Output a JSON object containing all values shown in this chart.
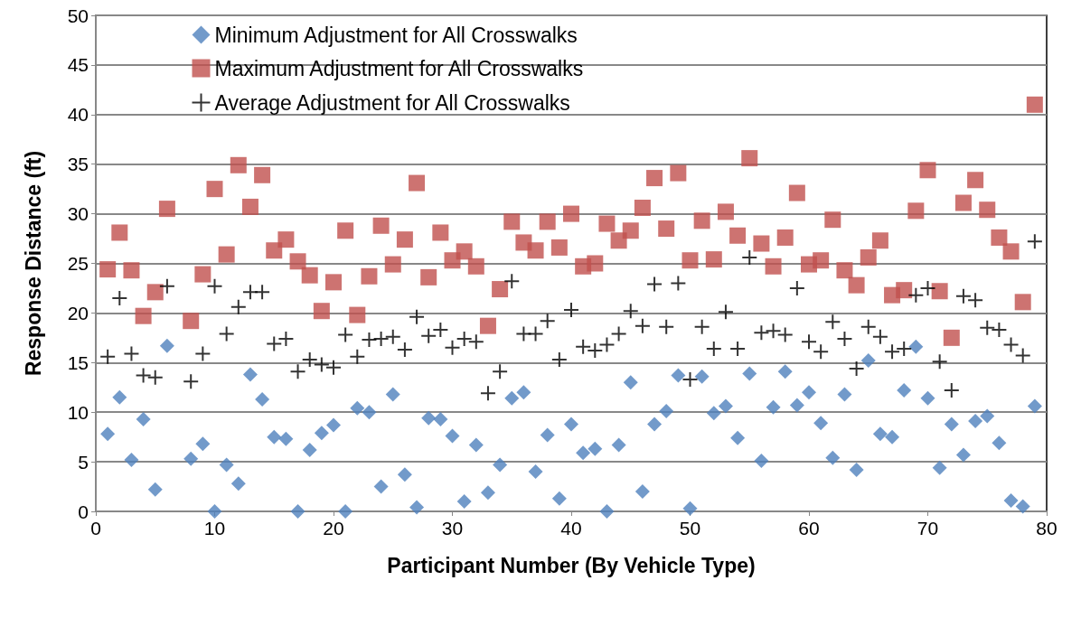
{
  "chart_data": {
    "type": "scatter",
    "xlabel": "Participant Number (By Vehicle Type)",
    "ylabel": "Response Distance (ft)",
    "x": [
      1,
      2,
      3,
      4,
      5,
      6,
      7,
      8,
      9,
      10,
      11,
      12,
      13,
      14,
      15,
      16,
      17,
      18,
      19,
      20,
      21,
      22,
      23,
      24,
      25,
      26,
      27,
      28,
      29,
      30,
      31,
      32,
      33,
      34,
      35,
      36,
      37,
      38,
      39,
      40,
      41,
      42,
      43,
      44,
      45,
      46,
      47,
      48,
      49,
      50,
      51,
      52,
      53,
      54,
      55,
      56,
      57,
      58,
      59,
      60,
      61,
      62,
      63,
      64,
      65,
      66,
      67,
      68,
      69,
      70,
      71,
      72,
      73,
      74,
      75,
      76,
      77,
      78,
      79
    ],
    "series": [
      {
        "name": "Minimum Adjustment for All Crosswalks",
        "color": "#4f81bd",
        "marker": "diamond",
        "values": [
          7.8,
          11.5,
          5.2,
          9.3,
          2.2,
          16.7,
          null,
          5.3,
          6.8,
          0,
          4.7,
          2.8,
          13.8,
          11.3,
          7.5,
          7.3,
          0,
          6.2,
          7.9,
          8.7,
          0,
          10.4,
          10.0,
          2.5,
          11.8,
          3.7,
          0.4,
          9.4,
          9.3,
          7.6,
          1.0,
          6.7,
          1.9,
          4.7,
          11.4,
          12.0,
          4.0,
          7.7,
          1.3,
          8.8,
          5.9,
          6.3,
          0,
          6.7,
          13.0,
          2.0,
          8.8,
          10.1,
          13.7,
          0.3,
          13.6,
          9.9,
          10.6,
          7.4,
          13.9,
          5.1,
          10.5,
          14.1,
          10.7,
          12.0,
          8.9,
          5.4,
          11.8,
          4.2,
          15.2,
          7.8,
          7.5,
          12.2,
          16.6,
          11.4,
          4.4,
          8.8,
          5.7,
          9.1,
          9.6,
          6.9,
          1.1,
          0.5,
          10.6
        ]
      },
      {
        "name": "Maximum Adjustment for All Crosswalks",
        "color": "#c0504d",
        "marker": "square",
        "values": [
          24.4,
          28.1,
          24.3,
          19.7,
          22.1,
          30.5,
          null,
          19.2,
          23.9,
          32.5,
          25.9,
          34.9,
          30.7,
          33.9,
          26.3,
          27.4,
          25.2,
          23.8,
          20.2,
          23.1,
          28.3,
          19.8,
          23.7,
          28.8,
          24.9,
          27.4,
          33.1,
          23.6,
          28.1,
          25.3,
          26.2,
          24.7,
          18.7,
          22.4,
          29.2,
          27.1,
          26.3,
          29.2,
          26.6,
          30.0,
          24.7,
          25.0,
          29.0,
          27.3,
          28.3,
          30.6,
          33.6,
          28.5,
          34.1,
          25.3,
          29.3,
          25.4,
          30.2,
          27.8,
          35.6,
          27.0,
          24.7,
          27.6,
          32.1,
          24.9,
          25.3,
          29.4,
          24.3,
          22.8,
          25.6,
          27.3,
          21.8,
          22.3,
          30.3,
          34.4,
          22.2,
          17.5,
          31.1,
          33.4,
          30.4,
          27.6,
          26.2,
          21.1,
          41.0
        ]
      },
      {
        "name": "Average Adjustment for All Crosswalks",
        "color": "#000000",
        "marker": "cross",
        "values": [
          15.6,
          21.5,
          15.9,
          13.7,
          13.5,
          22.7,
          null,
          13.1,
          15.9,
          22.7,
          17.9,
          20.6,
          22.1,
          22.1,
          16.9,
          17.4,
          14.1,
          15.3,
          14.8,
          14.5,
          17.8,
          15.6,
          17.3,
          17.4,
          17.6,
          16.3,
          19.6,
          17.7,
          18.3,
          16.5,
          17.4,
          17.1,
          11.9,
          14.1,
          23.2,
          17.9,
          17.9,
          19.2,
          15.3,
          20.3,
          16.6,
          16.2,
          16.8,
          17.9,
          20.2,
          18.7,
          22.9,
          18.6,
          23.0,
          13.3,
          18.6,
          16.4,
          20.1,
          16.4,
          25.6,
          18.0,
          18.2,
          17.8,
          22.5,
          17.1,
          16.1,
          19.1,
          17.4,
          14.4,
          18.6,
          17.6,
          16.1,
          16.4,
          21.8,
          22.5,
          15.1,
          12.2,
          21.7,
          21.3,
          18.5,
          18.3,
          16.8,
          15.7,
          27.2
        ]
      }
    ],
    "xlim": [
      0,
      80
    ],
    "xticks": [
      0,
      10,
      20,
      30,
      40,
      50,
      60,
      70,
      80
    ],
    "ylim": [
      0,
      50
    ],
    "yticks": [
      0,
      5,
      10,
      15,
      20,
      25,
      30,
      35,
      40,
      45,
      50
    ],
    "grid": "y",
    "legend": "top left"
  }
}
